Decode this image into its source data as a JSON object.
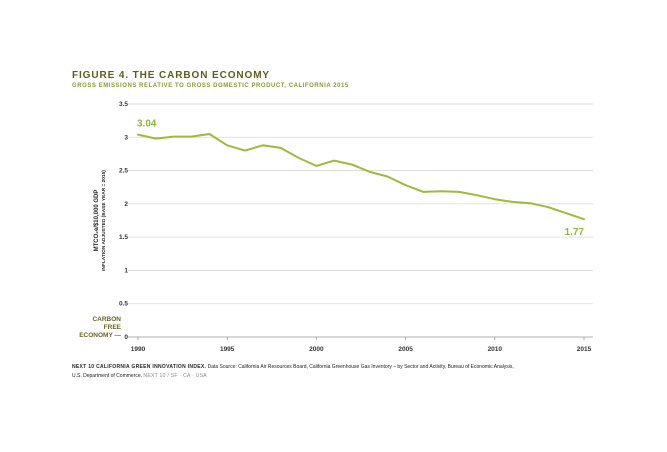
{
  "header": {
    "title": "FIGURE 4. THE CARBON ECONOMY",
    "subtitle": "GROSS EMISSIONS RELATIVE TO GROSS DOMESTIC PRODUCT, CALIFORNIA 2015"
  },
  "footer": {
    "lead": "NEXT 10 CALIFORNIA GREEN INNOVATION INDEX.",
    "source_line1": "Data Source: California Air Resources Board, California Greenhouse Gas Inventory – by Sector and Activity, Bureau of Economic Analysis,",
    "source_line2": "U.S. Department of Commerce.",
    "brand": "NEXT 10  /  SF · CA · USA"
  },
  "colors": {
    "line": "#9bbb3a",
    "label_value": "#8fb73a",
    "title": "#5f5d1c",
    "subtitle": "#8a9a2c",
    "carbon_free": "#6b6520",
    "grid": "#d9d9d9",
    "axis": "#999999"
  },
  "chart_data": {
    "type": "line",
    "title": "FIGURE 4. THE CARBON ECONOMY",
    "subtitle": "GROSS EMISSIONS RELATIVE TO GROSS DOMESTIC PRODUCT, CALIFORNIA 2015",
    "ylabel": "MTCO₂e/$10,000 GDP",
    "ylabel_sub": "INFLATION ADJUSTED (BASE YEAR = 2015)",
    "xlabel": "",
    "ylim": [
      0,
      3.5
    ],
    "xlim": [
      1990,
      2015
    ],
    "yticks": [
      0,
      0.5,
      1,
      1.5,
      2,
      2.5,
      3,
      3.5
    ],
    "ytick_labels": [
      "0",
      "0.5",
      "1",
      "1.5",
      "2",
      "2.5",
      "3",
      "3.5"
    ],
    "xticks": [
      1990,
      1995,
      2000,
      2005,
      2010,
      2015
    ],
    "xtick_labels": [
      "1990",
      "1995",
      "2000",
      "2005",
      "2010",
      "2015"
    ],
    "grid": true,
    "series": [
      {
        "x": [
          1990,
          1991,
          1992,
          1993,
          1994,
          1995,
          1996,
          1997,
          1998,
          1999,
          2000,
          2001,
          2002,
          2003,
          2004,
          2005,
          2006,
          2007,
          2008,
          2009,
          2010,
          2011,
          2012,
          2013,
          2014,
          2015
        ],
        "values": [
          3.04,
          2.98,
          3.01,
          3.01,
          3.05,
          2.88,
          2.8,
          2.88,
          2.84,
          2.69,
          2.57,
          2.65,
          2.59,
          2.48,
          2.41,
          2.28,
          2.18,
          2.19,
          2.18,
          2.13,
          2.07,
          2.03,
          2.01,
          1.95,
          1.86,
          1.77
        ]
      }
    ],
    "annotations": [
      {
        "text": "3.04",
        "x": 1990,
        "y": 3.04
      },
      {
        "text": "1.77",
        "x": 2015,
        "y": 1.77
      }
    ],
    "zero_label": [
      "CARBON",
      "FREE",
      "ECONOMY —"
    ]
  }
}
